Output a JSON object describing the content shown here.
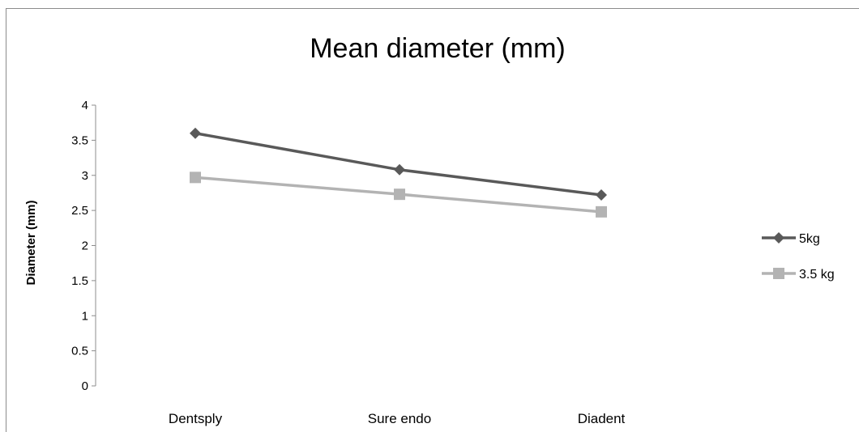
{
  "chart_data": {
    "type": "line",
    "title": "Mean diameter (mm)",
    "xlabel": "",
    "ylabel": "Diameter (mm)",
    "categories": [
      "Dentsply",
      "Sure endo",
      "Diadent"
    ],
    "ylim": [
      0,
      4
    ],
    "yticks": [
      0,
      0.5,
      1,
      1.5,
      2,
      2.5,
      3,
      3.5,
      4
    ],
    "ytick_labels": [
      "0",
      "0.5",
      "1",
      "1.5",
      "2",
      "2.5",
      "3",
      "3.5",
      "4"
    ],
    "grid": false,
    "legend_position": "right",
    "series": [
      {
        "name": "5kg",
        "values": [
          3.6,
          3.08,
          2.72
        ],
        "color": "#595959",
        "marker": "diamond"
      },
      {
        "name": "3.5 kg",
        "values": [
          2.97,
          2.73,
          2.48
        ],
        "color": "#b3b3b3",
        "marker": "square"
      }
    ]
  }
}
